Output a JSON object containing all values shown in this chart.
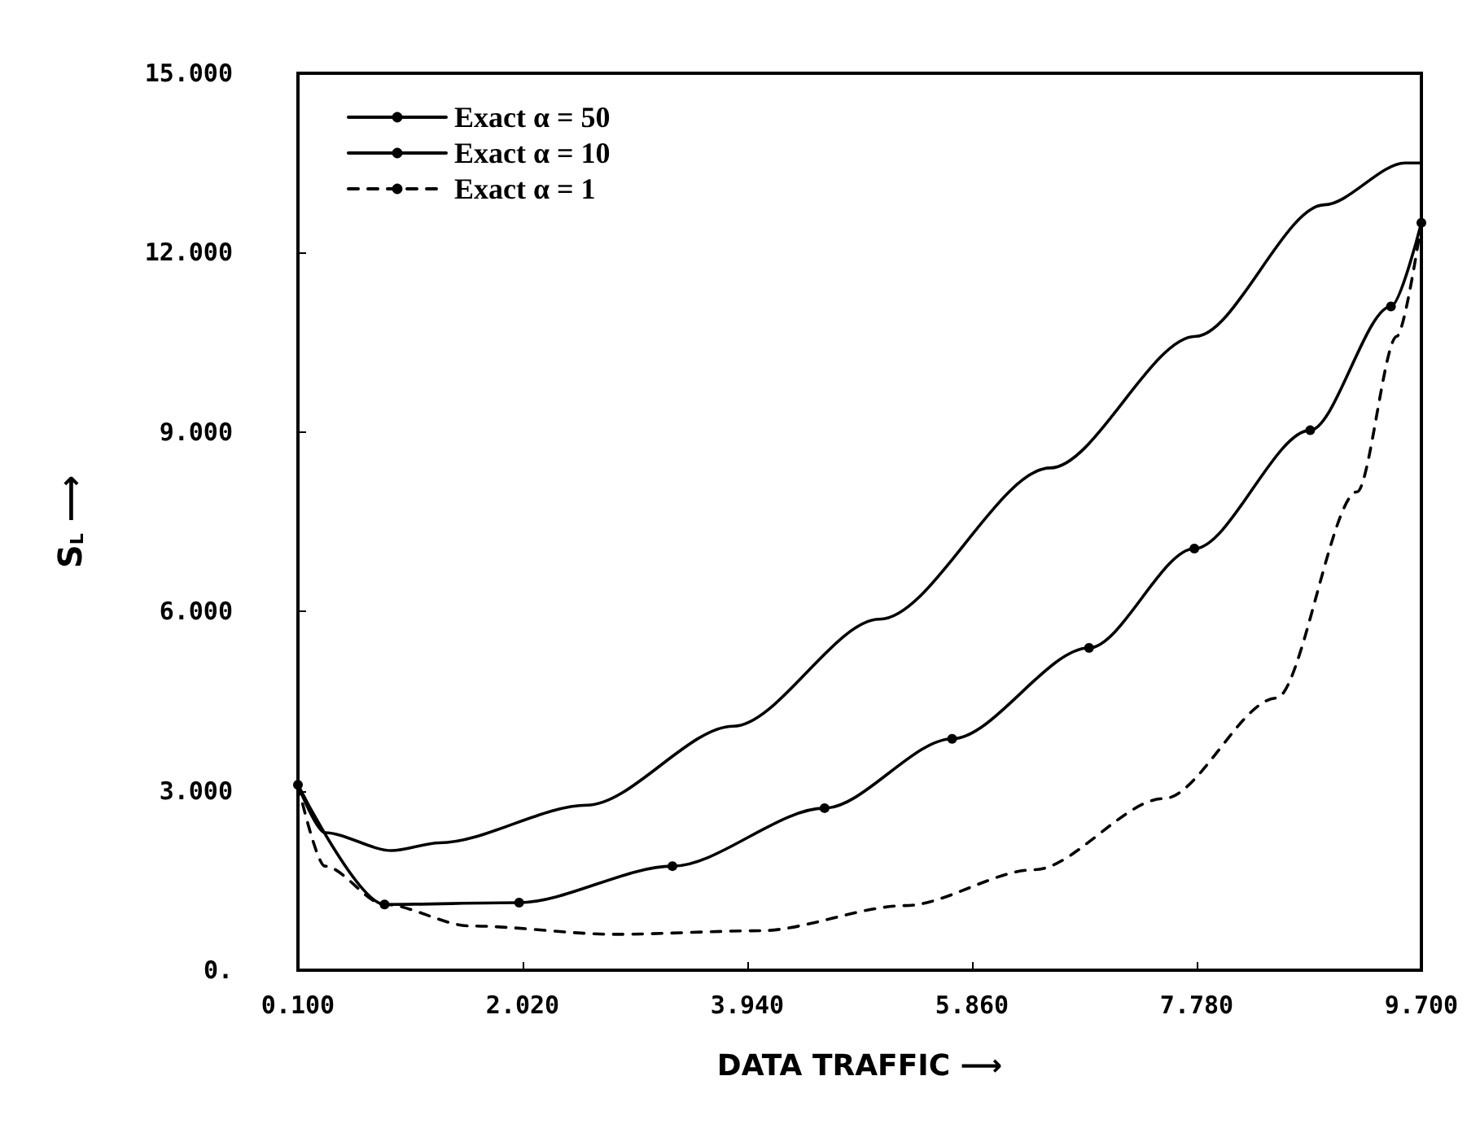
{
  "chart_data": {
    "type": "line",
    "xlabel": "DATA TRAFFIC ⟶",
    "ylabel": "S$_{L}$ ⟶",
    "xlim": [
      0.1,
      9.7
    ],
    "xticks": [
      {
        "value": 0.1,
        "label": "0.100"
      },
      {
        "value": 2.02,
        "label": "2.020"
      },
      {
        "value": 3.94,
        "label": "3.940"
      },
      {
        "value": 5.86,
        "label": "5.860"
      },
      {
        "value": 7.78,
        "label": "7.780"
      },
      {
        "value": 9.7,
        "label": "9.700"
      }
    ],
    "ylim": [
      0,
      15
    ],
    "yticks": [
      {
        "value": 0,
        "label": "0."
      },
      {
        "value": 3,
        "label": "3.000"
      },
      {
        "value": 6,
        "label": "6.000"
      },
      {
        "value": 9,
        "label": "9.000"
      },
      {
        "value": 12,
        "label": "12.000"
      },
      {
        "value": 15,
        "label": "15.000"
      }
    ],
    "grid": false,
    "legend": "top left",
    "series": [
      {
        "name": "Exact α = 50",
        "color": "#000000",
        "marker": "none",
        "line_style": "solid",
        "x": [
          0.1,
          0.33,
          0.9,
          1.31,
          2.57,
          3.82,
          5.07,
          6.53,
          7.77,
          8.87,
          9.56,
          9.7
        ],
        "values": [
          3.1,
          2.3,
          2.0,
          2.13,
          2.76,
          4.08,
          5.87,
          8.4,
          10.6,
          12.8,
          13.5,
          13.5
        ]
      },
      {
        "name": "Exact α = 10",
        "color": "#000000",
        "marker": "circle",
        "line_style": "solid",
        "x": [
          0.1,
          0.84,
          1.99,
          3.3,
          4.6,
          5.69,
          6.86,
          7.76,
          8.75,
          9.44,
          9.7
        ],
        "values": [
          3.1,
          1.1,
          1.13,
          1.74,
          2.71,
          3.87,
          5.39,
          7.05,
          9.03,
          11.1,
          12.5
        ]
      },
      {
        "name": "Exact α = 1",
        "color": "#000000",
        "marker": "none",
        "line_style": "dashed",
        "x": [
          0.1,
          0.33,
          0.84,
          1.57,
          2.81,
          4.05,
          5.29,
          6.39,
          7.5,
          8.46,
          9.15,
          9.49,
          9.7
        ],
        "values": [
          3.1,
          1.74,
          1.1,
          0.74,
          0.6,
          0.66,
          1.08,
          1.68,
          2.87,
          4.55,
          8.0,
          10.6,
          12.5
        ]
      }
    ]
  }
}
